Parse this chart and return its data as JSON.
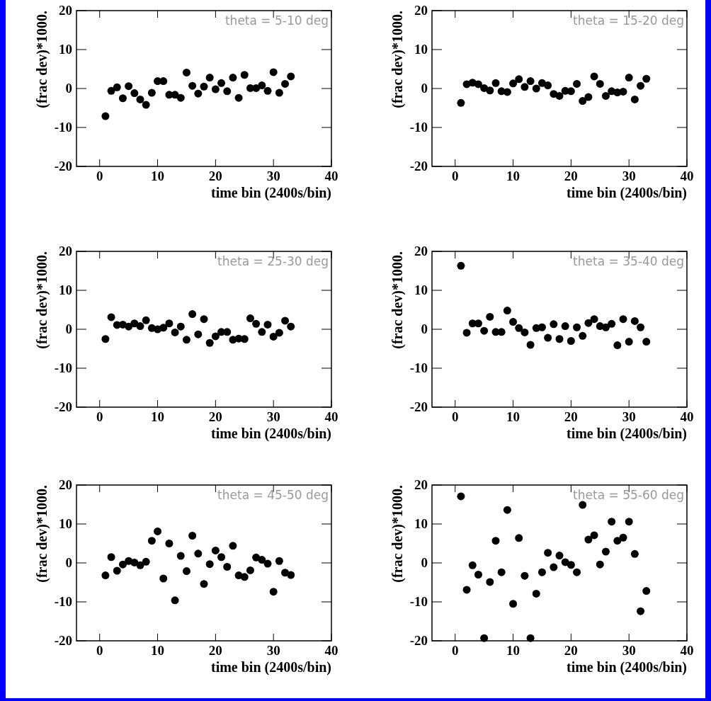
{
  "chart_data": [
    {
      "type": "scatter",
      "title": "theta = 5-10 deg",
      "xlabel": "time bin (2400s/bin)",
      "ylabel": "(frac dev)*1000.",
      "xlim": [
        -4,
        40
      ],
      "xticks": [
        0,
        10,
        20,
        30,
        40
      ],
      "ylim": [
        -20,
        20
      ],
      "yticks": [
        -20,
        -10,
        0,
        10,
        20
      ],
      "marker": "circle",
      "x": [
        1,
        2,
        3,
        4,
        5,
        6,
        7,
        8,
        9,
        10,
        11,
        12,
        13,
        14,
        15,
        16,
        17,
        18,
        19,
        20,
        21,
        22,
        23,
        24,
        25,
        26,
        27,
        28,
        29,
        30,
        31,
        32,
        33
      ],
      "series": [
        {
          "color": "#000000",
          "values": [
            -7.1,
            -0.6,
            0.3,
            -2.5,
            0.6,
            -1.2,
            -2.8,
            -4.2,
            -1.1,
            1.9,
            1.9,
            -1.6,
            -1.6,
            -2.4,
            4.1,
            0.7,
            -1.3,
            0.5,
            2.8,
            -0.2,
            1.4,
            -0.7,
            2.8,
            -2.4,
            3.5,
            0.1,
            0.1,
            0.8,
            -0.6,
            4.2,
            -1.1,
            1.2,
            3.1
          ]
        }
      ]
    },
    {
      "type": "scatter",
      "title": "theta = 15-20 deg",
      "xlabel": "time bin (2400s/bin)",
      "ylabel": "(frac dev)*1000.",
      "xlim": [
        -4,
        40
      ],
      "xticks": [
        0,
        10,
        20,
        30,
        40
      ],
      "ylim": [
        -20,
        20
      ],
      "yticks": [
        -20,
        -10,
        0,
        10,
        20
      ],
      "marker": "circle",
      "x": [
        1,
        2,
        3,
        4,
        5,
        6,
        7,
        8,
        9,
        10,
        11,
        12,
        13,
        14,
        15,
        16,
        17,
        18,
        19,
        20,
        21,
        22,
        23,
        24,
        25,
        26,
        27,
        28,
        29,
        30,
        31,
        32,
        33
      ],
      "series": [
        {
          "color": "#000000",
          "values": [
            -3.7,
            1.1,
            1.5,
            1.1,
            0.1,
            -0.5,
            1.4,
            -0.7,
            -0.9,
            1.3,
            2.4,
            0.4,
            1.9,
            0,
            1.4,
            0.8,
            -1.4,
            -1.9,
            -0.6,
            -0.7,
            1.2,
            -3.2,
            -2.2,
            3.1,
            1.2,
            -1.9,
            -0.7,
            -1.0,
            -0.8,
            2.8,
            -2.8,
            0.7,
            2.5
          ]
        }
      ]
    },
    {
      "type": "scatter",
      "title": "theta = 25-30 deg",
      "xlabel": "time bin (2400s/bin)",
      "ylabel": "(frac dev)*1000.",
      "xlim": [
        -4,
        40
      ],
      "xticks": [
        0,
        10,
        20,
        30,
        40
      ],
      "ylim": [
        -20,
        20
      ],
      "yticks": [
        -20,
        -10,
        0,
        10,
        20
      ],
      "marker": "circle",
      "x": [
        1,
        2,
        3,
        4,
        5,
        6,
        7,
        8,
        9,
        10,
        11,
        12,
        13,
        14,
        15,
        16,
        17,
        18,
        19,
        20,
        21,
        22,
        23,
        24,
        25,
        26,
        27,
        28,
        29,
        30,
        31,
        32,
        33
      ],
      "series": [
        {
          "color": "#000000",
          "values": [
            -2.5,
            3.1,
            1.1,
            1.2,
            0.7,
            1.5,
            0.8,
            2.3,
            0.3,
            0,
            0.4,
            1.5,
            -0.8,
            0.7,
            -2.7,
            3.9,
            -1.3,
            2.6,
            -3.5,
            -1.8,
            -0.7,
            -0.7,
            -2.7,
            -2.4,
            -2.5,
            2.8,
            1.4,
            -0.7,
            1.2,
            -1.9,
            -0.9,
            2.2,
            0.7
          ]
        }
      ]
    },
    {
      "type": "scatter",
      "title": "theta = 35-40 deg",
      "xlabel": "time bin (2400s/bin)",
      "ylabel": "(frac dev)*1000.",
      "xlim": [
        -4,
        40
      ],
      "xticks": [
        0,
        10,
        20,
        30,
        40
      ],
      "ylim": [
        -20,
        20
      ],
      "yticks": [
        -20,
        -10,
        0,
        10,
        20
      ],
      "marker": "circle",
      "x": [
        1,
        2,
        3,
        4,
        5,
        6,
        7,
        8,
        9,
        10,
        11,
        12,
        13,
        14,
        15,
        16,
        17,
        18,
        19,
        20,
        21,
        22,
        23,
        24,
        25,
        26,
        27,
        28,
        29,
        30,
        31,
        32,
        33
      ],
      "series": [
        {
          "color": "#000000",
          "values": [
            16.3,
            -0.9,
            1.5,
            1.5,
            -0.4,
            3.2,
            -0.7,
            -0.7,
            4.8,
            1.9,
            0.3,
            -0.8,
            -4.0,
            0.3,
            0.5,
            -2.2,
            1.3,
            -2.5,
            0.8,
            -3.0,
            0.5,
            -1.7,
            1.6,
            2.6,
            0.8,
            0.5,
            1.4,
            -4.1,
            2.6,
            -3.2,
            2.1,
            0.5,
            -3.2
          ]
        }
      ]
    },
    {
      "type": "scatter",
      "title": "theta = 45-50 deg",
      "xlabel": "time bin (2400s/bin)",
      "ylabel": "(frac dev)*1000.",
      "xlim": [
        -4,
        40
      ],
      "xticks": [
        0,
        10,
        20,
        30,
        40
      ],
      "ylim": [
        -20,
        20
      ],
      "yticks": [
        -20,
        -10,
        0,
        10,
        20
      ],
      "marker": "circle",
      "x": [
        1,
        2,
        3,
        4,
        5,
        6,
        7,
        8,
        9,
        10,
        11,
        12,
        13,
        14,
        15,
        16,
        17,
        18,
        19,
        20,
        21,
        22,
        23,
        24,
        25,
        26,
        27,
        28,
        29,
        30,
        31,
        32,
        33
      ],
      "series": [
        {
          "color": "#000000",
          "values": [
            -3.2,
            1.5,
            -2.0,
            -0.4,
            0.5,
            0.1,
            -0.6,
            0.3,
            5.7,
            8.1,
            -4.0,
            5.0,
            -9.6,
            1.8,
            -2.1,
            7.0,
            2.4,
            -5.4,
            -0.3,
            3.2,
            1.5,
            -1.0,
            4.4,
            -3.2,
            -3.6,
            -1.9,
            1.4,
            0.8,
            -0.2,
            -7.4,
            0.5,
            -2.5,
            -3.1
          ]
        }
      ]
    },
    {
      "type": "scatter",
      "title": "theta = 55-60 deg",
      "xlabel": "time bin (2400s/bin)",
      "ylabel": "(frac dev)*1000.",
      "xlim": [
        -4,
        40
      ],
      "xticks": [
        0,
        10,
        20,
        30,
        40
      ],
      "ylim": [
        -20,
        20
      ],
      "yticks": [
        -20,
        -10,
        0,
        10,
        20
      ],
      "marker": "circle",
      "x": [
        1,
        2,
        3,
        4,
        5,
        6,
        7,
        8,
        9,
        10,
        11,
        12,
        13,
        14,
        15,
        16,
        17,
        18,
        19,
        20,
        21,
        22,
        23,
        24,
        25,
        26,
        27,
        28,
        29,
        30,
        31,
        32,
        33
      ],
      "series": [
        {
          "color": "#000000",
          "values": [
            17.1,
            -6.9,
            -0.6,
            -3.0,
            -19.3,
            -4.9,
            5.7,
            -2.4,
            13.6,
            -10.5,
            6.4,
            -3.3,
            -19.3,
            -7.9,
            -2.4,
            2.6,
            -1.1,
            1.9,
            0.2,
            -0.5,
            -2.4,
            14.9,
            6.0,
            7.1,
            -0.4,
            2.9,
            10.6,
            5.7,
            6.5,
            10.6,
            2.3,
            -12.4,
            -7.2
          ]
        }
      ]
    }
  ]
}
